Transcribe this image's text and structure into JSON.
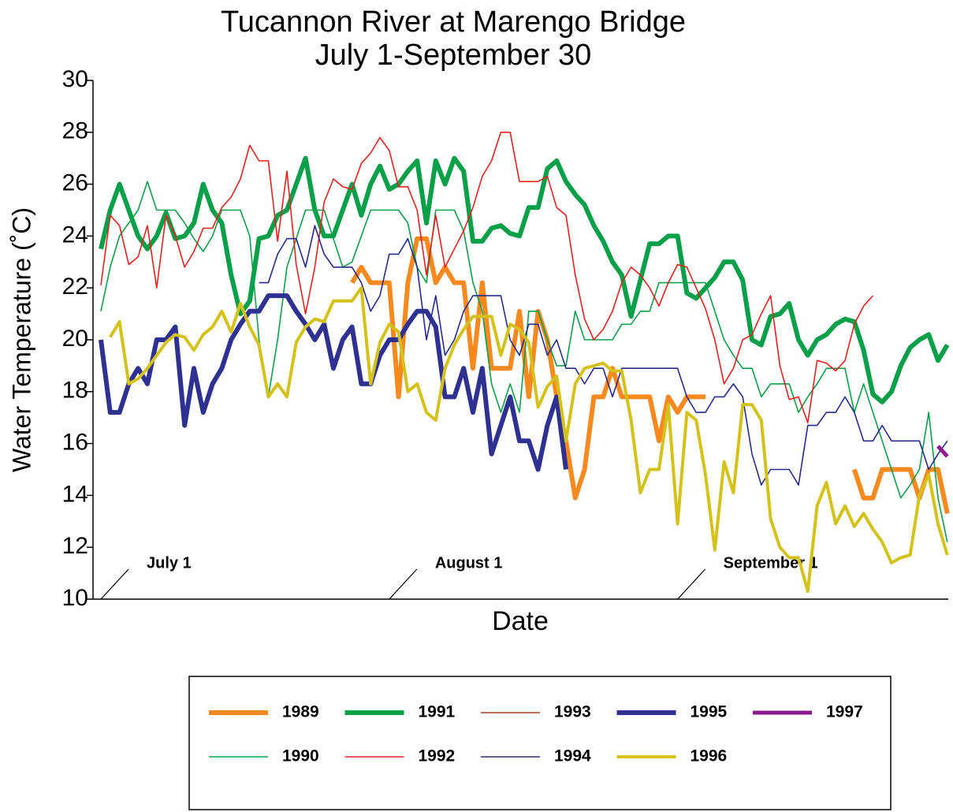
{
  "chart_data": {
    "type": "line",
    "title": [
      "Tucannon River at Marengo Bridge",
      "July 1-September 30"
    ],
    "xlabel": "Date",
    "ylabel": "Water Temperature (˚C)",
    "ylim": [
      10,
      30
    ],
    "yticks": [
      10,
      12,
      14,
      16,
      18,
      20,
      22,
      24,
      26,
      28,
      30
    ],
    "xlim": [
      -0.85,
      91.1
    ],
    "x": [
      0,
      1,
      2,
      3,
      4,
      5,
      6,
      7,
      8,
      9,
      10,
      11,
      12,
      13,
      14,
      15,
      16,
      17,
      18,
      19,
      20,
      21,
      22,
      23,
      24,
      25,
      26,
      27,
      28,
      29,
      30,
      31,
      32,
      33,
      34,
      35,
      36,
      37,
      38,
      39,
      40,
      41,
      42,
      43,
      44,
      45,
      46,
      47,
      48,
      49,
      50,
      51,
      52,
      53,
      54,
      55,
      56,
      57,
      58,
      59,
      60,
      61,
      62,
      63,
      64,
      65,
      66,
      67,
      68,
      69,
      70,
      71,
      72,
      73,
      74,
      75,
      76,
      77,
      78,
      79,
      80,
      81,
      82,
      83,
      84,
      85,
      86,
      87,
      88,
      89,
      90,
      91
    ],
    "annotations": [
      {
        "text": "July 1",
        "x": 0
      },
      {
        "text": "August 1",
        "x": 31
      },
      {
        "text": "September 1",
        "x": 62
      }
    ],
    "series": [
      {
        "name": "1989",
        "color": "#f7891f",
        "line_width": 6,
        "values": [
          null,
          null,
          null,
          null,
          null,
          null,
          null,
          null,
          null,
          null,
          null,
          null,
          null,
          null,
          null,
          null,
          null,
          null,
          null,
          null,
          null,
          null,
          null,
          null,
          null,
          null,
          null,
          22.2,
          22.8,
          22.2,
          22.2,
          22.2,
          17.8,
          22.2,
          23.9,
          23.9,
          22.2,
          22.8,
          22.2,
          22.2,
          18.9,
          22.2,
          18.9,
          18.9,
          18.9,
          21.1,
          17.8,
          21.1,
          20,
          17.8,
          16.1,
          13.9,
          15,
          17.8,
          17.8,
          18.9,
          17.8,
          17.8,
          17.8,
          17.8,
          16.1,
          17.8,
          17.2,
          17.8,
          17.8,
          17.8,
          null,
          null,
          null,
          null,
          null,
          null,
          null,
          null,
          null,
          null,
          null,
          null,
          null,
          null,
          null,
          15,
          13.9,
          13.9,
          15,
          15,
          15,
          15,
          13.9,
          15,
          15,
          13.3
        ]
      },
      {
        "name": "1990",
        "color": "#0aa04a",
        "line_width": 1.6,
        "values": [
          21.1,
          22.8,
          24,
          24.5,
          25,
          26.1,
          25,
          25,
          25,
          24.5,
          23.9,
          23.4,
          24,
          25,
          25,
          25,
          24,
          20,
          17.8,
          20,
          22.8,
          23.9,
          25,
          25,
          25,
          23.9,
          22.8,
          23,
          24,
          25,
          25,
          25,
          25,
          24.5,
          22.8,
          22.2,
          25,
          25,
          25,
          24.2,
          22.2,
          21.1,
          18.3,
          17.2,
          18.3,
          17.2,
          21.1,
          21.1,
          20,
          19,
          19,
          21.1,
          20,
          20,
          20,
          20,
          20.6,
          20.6,
          21.1,
          21.1,
          22.2,
          22.2,
          22.2,
          22.2,
          22.2,
          22.2,
          21.1,
          20,
          19.4,
          18.9,
          18.9,
          17.8,
          18.3,
          18.3,
          18.3,
          17.2,
          17.8,
          18.3,
          18.9,
          18.9,
          18.9,
          17.2,
          18.3,
          17.2,
          16.1,
          15,
          13.9,
          14.4,
          15,
          17.2,
          13.9,
          12.2
        ]
      },
      {
        "name": "1991",
        "color": "#0aa04a",
        "line_width": 6,
        "values": [
          23.5,
          25,
          26,
          25,
          24,
          23.5,
          24,
          24.9,
          23.9,
          24,
          24.5,
          26,
          25,
          24.5,
          22.5,
          21,
          21.5,
          23.9,
          24,
          24.8,
          25,
          26,
          27,
          25,
          24,
          24,
          25,
          26,
          24.8,
          26,
          26.7,
          25.8,
          26,
          26.5,
          26.9,
          24.5,
          26.9,
          26,
          27,
          26.5,
          23.8,
          23.8,
          24.3,
          24.4,
          24.1,
          24,
          25.1,
          25.1,
          26.6,
          26.9,
          26.1,
          25.6,
          25.2,
          24.4,
          23.8,
          23,
          22.5,
          20.9,
          22.3,
          23.7,
          23.7,
          24,
          24,
          21.8,
          21.6,
          22,
          22.4,
          23,
          23,
          22.3,
          20,
          19.8,
          20.9,
          21,
          21.4,
          20,
          19.4,
          20,
          20.2,
          20.6,
          20.8,
          20.7,
          19.6,
          17.9,
          17.6,
          18,
          19,
          19.7,
          20,
          20.2,
          19.2,
          19.8
        ]
      },
      {
        "name": "1992",
        "color": "#e8211d",
        "line_width": 1.6,
        "values": [
          22.1,
          24.8,
          24.4,
          22.9,
          23.2,
          24.4,
          22,
          24.8,
          24,
          22.8,
          23.4,
          24.3,
          24.3,
          25.1,
          25.5,
          26.2,
          27.5,
          26.9,
          26.9,
          23.8,
          26.5,
          22.9,
          21,
          22.8,
          25.3,
          26.2,
          25.9,
          25.8,
          26.8,
          27.2,
          27.8,
          27.3,
          25.9,
          25.9,
          25,
          22.5,
          24.8,
          22.8,
          23.5,
          24.2,
          25.1,
          26.3,
          26.9,
          28,
          28,
          26.1,
          26.1,
          26.1,
          26.3,
          25.1,
          24.8,
          22.5,
          20.8,
          20,
          20.4,
          21.1,
          22.2,
          22.8,
          22.5,
          22,
          21.3,
          22.2,
          22.9,
          22.8,
          22,
          21.2,
          20,
          18.3,
          18.9,
          20,
          20.2,
          21,
          21.7,
          19,
          17.7,
          17.8,
          16.8,
          19.2,
          19.1,
          18.8,
          19.2,
          20.6,
          21.3,
          21.7,
          null,
          null,
          null,
          null,
          null,
          null,
          null,
          null
        ]
      },
      {
        "name": "1993",
        "color": "#a0421a",
        "line_width": 1.6,
        "values": [
          null,
          null,
          null,
          null,
          null,
          null,
          null,
          null,
          null,
          null,
          null,
          null,
          null,
          null,
          null,
          null,
          null,
          null,
          null,
          null,
          null,
          null,
          null,
          null,
          null,
          null,
          null,
          null,
          null,
          null,
          null,
          null,
          null,
          null,
          null,
          null,
          null,
          null,
          null,
          null,
          null,
          null,
          null,
          null,
          null,
          null,
          null,
          null,
          null,
          null,
          null,
          null,
          null,
          null,
          null,
          null,
          null,
          null,
          null,
          null,
          null,
          null,
          null,
          null,
          null,
          null,
          null,
          null,
          null,
          null,
          null,
          null,
          null,
          null,
          null,
          null,
          null,
          null,
          null,
          null,
          null,
          null,
          null,
          null,
          null,
          null,
          null,
          null,
          null,
          null,
          null,
          null
        ]
      },
      {
        "name": "1994",
        "color": "#262b8c",
        "line_width": 1.6,
        "values": [
          null,
          null,
          null,
          null,
          null,
          null,
          null,
          null,
          null,
          null,
          null,
          null,
          null,
          null,
          null,
          null,
          null,
          22.2,
          22.2,
          23.3,
          23.9,
          23.9,
          22.8,
          24.4,
          23.3,
          22.8,
          22.8,
          22.8,
          22.2,
          21.1,
          21.7,
          23.3,
          23.3,
          23.9,
          22.8,
          20,
          21.7,
          19.4,
          20,
          21.1,
          21.7,
          21.7,
          21.7,
          21.7,
          20,
          19.4,
          20.6,
          20.6,
          19.4,
          20,
          18.9,
          18.9,
          18.3,
          18.9,
          18.9,
          17.8,
          18.9,
          18.9,
          18.9,
          18.9,
          18.9,
          18.9,
          18.9,
          17.8,
          17.2,
          17.2,
          17.8,
          17.8,
          18.3,
          17.8,
          15.6,
          14.4,
          15,
          15,
          15,
          14.4,
          16.7,
          16.7,
          17.2,
          17.2,
          17.8,
          17.2,
          16.1,
          16.1,
          16.7,
          16.1,
          16.1,
          16.1,
          16.1,
          15,
          15.6,
          16.1
        ]
      },
      {
        "name": "1995",
        "color": "#2e3192",
        "line_width": 6,
        "values": [
          20,
          17.2,
          17.2,
          18.3,
          18.9,
          18.3,
          20,
          20,
          20.5,
          16.7,
          18.9,
          17.2,
          18.3,
          18.9,
          20,
          20.6,
          21.1,
          21.1,
          21.7,
          21.7,
          21.7,
          21.1,
          20.6,
          20,
          20.6,
          18.9,
          20,
          20.5,
          18.3,
          18.3,
          19.4,
          20,
          20,
          20.6,
          21.1,
          21.1,
          20.5,
          17.8,
          17.8,
          18.9,
          17.2,
          18.9,
          15.6,
          16.7,
          17.8,
          16.1,
          16.1,
          15,
          16.7,
          17.8,
          15,
          null,
          null,
          null,
          null,
          null,
          null,
          null,
          null,
          null,
          null,
          null,
          null,
          null,
          null,
          null,
          null,
          null,
          null,
          null,
          null,
          null,
          null,
          null,
          null,
          null,
          null,
          null,
          null,
          null,
          null,
          null,
          null,
          null,
          null,
          null,
          null,
          null,
          null,
          null,
          null,
          null
        ]
      },
      {
        "name": "1996",
        "color": "#d4c21a",
        "line_width": 4,
        "values": [
          null,
          20.1,
          20.7,
          18.3,
          18.5,
          18.9,
          19.4,
          19.9,
          20.2,
          20.1,
          19.6,
          20.2,
          20.5,
          21.1,
          20.3,
          21.4,
          20.5,
          19.8,
          17.8,
          18.3,
          17.8,
          19.9,
          20.5,
          20.8,
          20.7,
          21.5,
          21.5,
          21.5,
          22,
          18.3,
          19.9,
          20.6,
          20.3,
          18,
          18.3,
          17.2,
          16.9,
          18.9,
          19.8,
          20.4,
          20.9,
          20.9,
          20.9,
          19.4,
          20.6,
          20.4,
          19.9,
          17.4,
          18.2,
          18.6,
          16.1,
          18.3,
          18.9,
          19,
          19.1,
          18.8,
          18.8,
          16.9,
          14.1,
          15,
          15,
          17.5,
          12.9,
          17.2,
          16.9,
          14.8,
          11.9,
          15.3,
          14.1,
          17.5,
          17.5,
          16.9,
          13.1,
          12,
          11.6,
          11.6,
          10.3,
          13.6,
          14.5,
          12.9,
          13.6,
          12.8,
          13.3,
          12.7,
          12.2,
          11.4,
          11.6,
          11.7,
          14,
          14.8,
          12.9,
          11.7
        ]
      },
      {
        "name": "1997",
        "color": "#8b1a8f",
        "line_width": 5,
        "values": [
          null,
          null,
          null,
          null,
          null,
          null,
          null,
          null,
          null,
          null,
          null,
          null,
          null,
          null,
          null,
          null,
          null,
          null,
          null,
          null,
          null,
          null,
          null,
          null,
          null,
          null,
          null,
          null,
          null,
          null,
          null,
          null,
          null,
          null,
          null,
          null,
          null,
          null,
          null,
          null,
          null,
          null,
          null,
          null,
          null,
          null,
          null,
          null,
          null,
          null,
          null,
          null,
          null,
          null,
          null,
          null,
          null,
          null,
          null,
          null,
          null,
          null,
          null,
          null,
          null,
          null,
          null,
          null,
          null,
          null,
          null,
          null,
          null,
          null,
          null,
          null,
          null,
          null,
          null,
          null,
          null,
          null,
          null,
          null,
          null,
          null,
          null,
          null,
          null,
          null,
          15.9,
          15.5
        ]
      }
    ]
  }
}
